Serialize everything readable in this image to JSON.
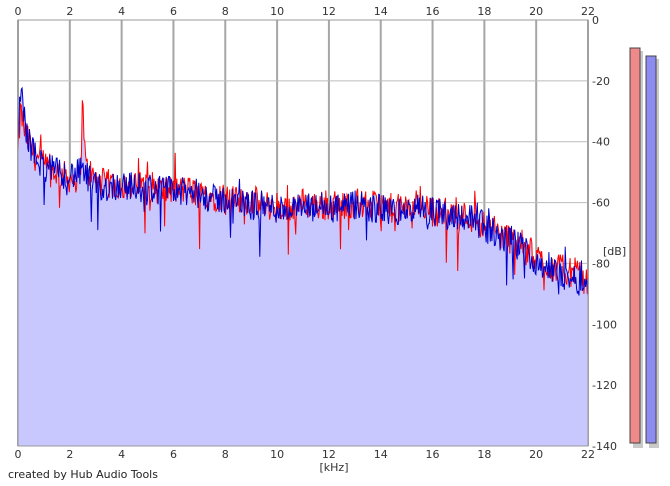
{
  "chart_data": {
    "type": "area",
    "xlabel": "[kHz]",
    "ylabel": "[dB]",
    "xlim": [
      0,
      22
    ],
    "ylim": [
      -140,
      0
    ],
    "x_ticks": [
      "0",
      "2",
      "4",
      "6",
      "8",
      "10",
      "12",
      "14",
      "16",
      "18",
      "20",
      "22"
    ],
    "y_ticks": [
      "0",
      "-20",
      "-40",
      "-60",
      "-80",
      "-100",
      "-120",
      "-140"
    ],
    "grid": true,
    "credit": "created by Hub Audio Tools",
    "series": [
      {
        "color": "#ff0000",
        "x": [
          0,
          0.1,
          0.3,
          0.6,
          1,
          1.5,
          2,
          2.4,
          2.5,
          2.6,
          3,
          3.5,
          4,
          4.5,
          5,
          5.5,
          6,
          6.5,
          7,
          7.5,
          8,
          8.5,
          9,
          9.5,
          10,
          10.5,
          11,
          11.5,
          12,
          12.5,
          13,
          13.5,
          14,
          14.5,
          15,
          15.5,
          16,
          16.5,
          17,
          17.5,
          18,
          18.5,
          19,
          19.5,
          20,
          20.5,
          21,
          21.5,
          22
        ],
        "values": [
          -45,
          -30,
          -38,
          -44,
          -48,
          -50,
          -52,
          -52,
          -25,
          -48,
          -53,
          -54,
          -54,
          -55,
          -54,
          -56,
          -56,
          -56,
          -57,
          -58,
          -58,
          -60,
          -59,
          -61,
          -61,
          -62,
          -60,
          -61,
          -61,
          -61,
          -60,
          -61,
          -61,
          -62,
          -62,
          -60,
          -63,
          -63,
          -64,
          -65,
          -67,
          -70,
          -72,
          -74,
          -78,
          -81,
          -82,
          -83,
          -86
        ]
      },
      {
        "color": "#0000cc",
        "x": [
          0,
          0.1,
          0.3,
          0.6,
          1,
          1.5,
          2,
          2.5,
          3,
          3.5,
          4,
          4.5,
          5,
          5.5,
          6,
          6.5,
          7,
          7.5,
          8,
          8.5,
          9,
          9.5,
          10,
          10.5,
          11,
          11.5,
          12,
          12.5,
          13,
          13.5,
          14,
          14.5,
          15,
          15.5,
          16,
          16.5,
          17,
          17.5,
          18,
          18.5,
          19,
          19.5,
          20,
          20.5,
          21,
          21.5,
          22
        ],
        "values": [
          -40,
          -22,
          -36,
          -44,
          -48,
          -50,
          -51,
          -50,
          -55,
          -55,
          -54,
          -55,
          -55,
          -56,
          -56,
          -57,
          -57,
          -59,
          -59,
          -60,
          -61,
          -61,
          -62,
          -62,
          -62,
          -62,
          -62,
          -62,
          -61,
          -62,
          -62,
          -63,
          -63,
          -62,
          -63,
          -64,
          -64,
          -65,
          -68,
          -71,
          -73,
          -75,
          -79,
          -82,
          -84,
          -85,
          -87
        ]
      }
    ],
    "meters": [
      {
        "color": "#f08a8a",
        "value_db": -9
      },
      {
        "color": "#8b8bf2",
        "value_db": -12
      }
    ]
  }
}
